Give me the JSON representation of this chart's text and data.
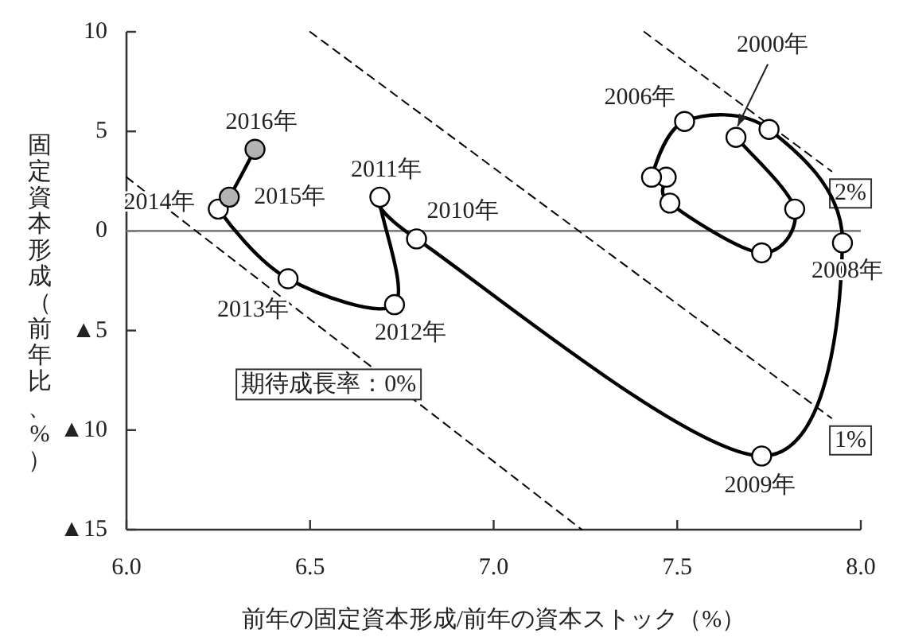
{
  "chart_data": {
    "type": "line",
    "xlabel": "前年の固定資本形成/前年の資本ストック（%）",
    "ylabel": "固定資本形成（前年比、%）",
    "xlim": [
      6,
      8
    ],
    "ylim": [
      -15,
      10
    ],
    "xticks": [
      {
        "value": 6,
        "label": "6.0"
      },
      {
        "value": 6.5,
        "label": "6.5"
      },
      {
        "value": 7,
        "label": "7.0"
      },
      {
        "value": 7.5,
        "label": "7.5"
      },
      {
        "value": 8,
        "label": "8.0"
      }
    ],
    "yticks": [
      10,
      5,
      0,
      {
        "value": -5,
        "label": "▲5"
      },
      {
        "value": -10,
        "label": "▲10"
      },
      {
        "value": -15,
        "label": "▲15"
      }
    ],
    "ref_lines": [
      {
        "axis": "y",
        "value": 0,
        "color": "#808080"
      }
    ],
    "series": [
      {
        "type": "line",
        "name": "期待成長率：0%",
        "color": "#000000",
        "line_style": "dashed",
        "x": [
          6.0,
          7.24
        ],
        "values": [
          2.7,
          -15
        ]
      },
      {
        "type": "line",
        "name": "1%",
        "color": "#000000",
        "line_style": "dashed",
        "x": [
          6.5,
          7.92
        ],
        "values": [
          10,
          -9.4
        ]
      },
      {
        "type": "line",
        "name": "2%",
        "color": "#000000",
        "line_style": "dashed",
        "x": [
          7.41,
          7.92
        ],
        "values": [
          10,
          3.0
        ]
      },
      {
        "type": "line",
        "color": "#000000",
        "marker": "circle",
        "x": [
          7.66,
          7.82,
          7.73,
          7.48,
          7.47,
          7.43,
          7.52,
          7.75,
          7.95,
          7.73,
          6.79,
          6.69,
          6.73,
          6.44,
          6.25,
          6.28,
          6.35
        ],
        "values": [
          4.7,
          1.1,
          -1.1,
          1.4,
          2.7,
          2.7,
          5.5,
          5.1,
          -0.6,
          -11.3,
          -0.4,
          1.7,
          -3.7,
          -2.4,
          1.1,
          1.7,
          4.1
        ],
        "colors": [
          "#ffffff",
          "#ffffff",
          "#ffffff",
          "#ffffff",
          "#ffffff",
          "#ffffff",
          "#ffffff",
          "#ffffff",
          "#ffffff",
          "#ffffff",
          "#ffffff",
          "#ffffff",
          "#ffffff",
          "#ffffff",
          "#ffffff",
          "#b3b3b3",
          "#b3b3b3"
        ]
      }
    ],
    "annotations": [
      {
        "text": "2000年",
        "x": 7.66,
        "y": 4.7
      },
      {
        "text": "2006年",
        "x": 7.52,
        "y": 5.5
      },
      {
        "text": "2008年",
        "x": 7.95,
        "y": -0.6
      },
      {
        "text": "2009年",
        "x": 7.73,
        "y": -11.3
      },
      {
        "text": "2010年",
        "x": 6.79,
        "y": -0.4
      },
      {
        "text": "2011年",
        "x": 6.69,
        "y": 1.7
      },
      {
        "text": "2012年",
        "x": 6.73,
        "y": -3.7
      },
      {
        "text": "2013年",
        "x": 6.44,
        "y": -2.4
      },
      {
        "text": "2014年",
        "x": 6.25,
        "y": 1.1
      },
      {
        "text": "2015年",
        "x": 6.28,
        "y": 1.7
      },
      {
        "text": "2016年",
        "x": 6.35,
        "y": 4.1
      }
    ]
  }
}
